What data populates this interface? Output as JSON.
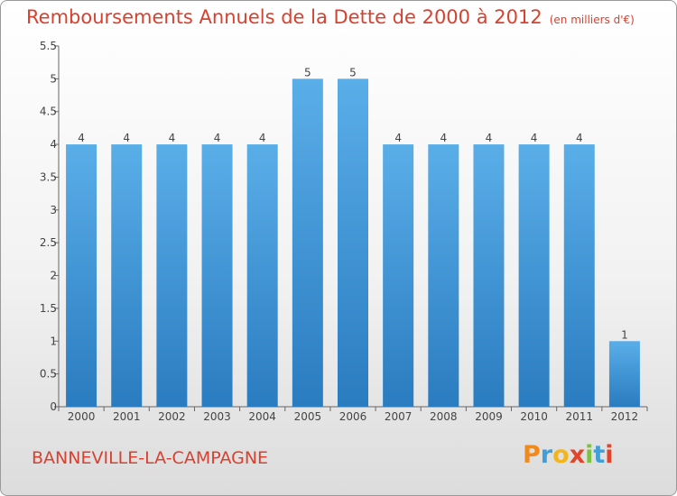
{
  "chart_data": {
    "type": "bar",
    "title": "Remboursements Annuels de la Dette de 2000 à 2012",
    "unit_note": "(en milliers d'€)",
    "categories": [
      "2000",
      "2001",
      "2002",
      "2003",
      "2004",
      "2005",
      "2006",
      "2007",
      "2008",
      "2009",
      "2010",
      "2011",
      "2012"
    ],
    "values": [
      4,
      4,
      4,
      4,
      4,
      5,
      5,
      4,
      4,
      4,
      4,
      4,
      1
    ],
    "data_labels": [
      "4",
      "4",
      "4",
      "4",
      "4",
      "5",
      "5",
      "4",
      "4",
      "4",
      "4",
      "4",
      "1"
    ],
    "yticks": [
      0,
      0.5,
      1,
      1.5,
      2,
      2.5,
      3,
      3.5,
      4,
      4.5,
      5,
      5.5
    ],
    "ytick_labels": [
      "0",
      "0.5",
      "1",
      "1.5",
      "2",
      "2.5",
      "3",
      "3.5",
      "4",
      "4.5",
      "5",
      "5.5"
    ],
    "ylim": [
      0,
      5.5
    ],
    "grid": false,
    "xlabel": "",
    "ylabel": "",
    "colors": {
      "bar_top": "#5aaee8",
      "bar_bottom": "#2a7cc0",
      "title": "#d8412f"
    }
  },
  "footer": {
    "commune": "BANNEVILLE-LA-CAMPAGNE"
  },
  "logo": {
    "letters": [
      "P",
      "r",
      "o",
      "x",
      "i",
      "t",
      "i"
    ],
    "colors": [
      "#f08a1e",
      "#3f9fd6",
      "#f2b51d",
      "#e0442a",
      "#7cc242",
      "#3f9fd6",
      "#e0442a"
    ]
  }
}
